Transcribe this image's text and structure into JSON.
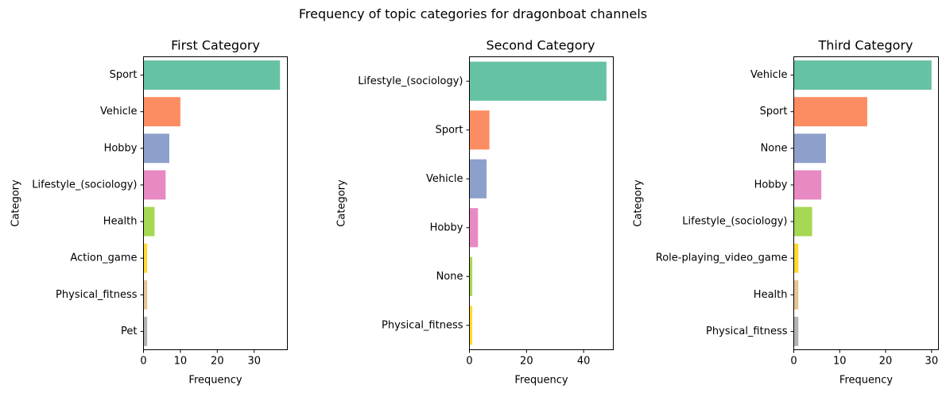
{
  "suptitle": "Frequency of topic categories for dragonboat channels",
  "chart_data": [
    {
      "type": "bar",
      "orientation": "horizontal",
      "title": "First Category",
      "xlabel": "Frequency",
      "ylabel": "Category",
      "categories": [
        "Sport",
        "Vehicle",
        "Hobby",
        "Lifestyle_(sociology)",
        "Health",
        "Action_game",
        "Physical_fitness",
        "Pet"
      ],
      "values": [
        37,
        10,
        7,
        6,
        3,
        1,
        1,
        1
      ],
      "colors": [
        "#66c2a5",
        "#fc8d62",
        "#8da0cb",
        "#e78ac3",
        "#a6d854",
        "#ffd92f",
        "#e5c494",
        "#b3b3b3"
      ],
      "xlim": [
        0,
        39
      ],
      "xticks": [
        0,
        10,
        20,
        30
      ],
      "grid": false
    },
    {
      "type": "bar",
      "orientation": "horizontal",
      "title": "Second Category",
      "xlabel": "Frequency",
      "ylabel": "Category",
      "categories": [
        "Lifestyle_(sociology)",
        "Sport",
        "Vehicle",
        "Hobby",
        "None",
        "Physical_fitness"
      ],
      "values": [
        48,
        7,
        6,
        3,
        1,
        1
      ],
      "colors": [
        "#66c2a5",
        "#fc8d62",
        "#8da0cb",
        "#e78ac3",
        "#a6d854",
        "#ffd92f"
      ],
      "xlim": [
        0,
        50.4
      ],
      "xticks": [
        0,
        20,
        40
      ],
      "grid": false
    },
    {
      "type": "bar",
      "orientation": "horizontal",
      "title": "Third Category",
      "xlabel": "Frequency",
      "ylabel": "Category",
      "categories": [
        "Vehicle",
        "Sport",
        "None",
        "Hobby",
        "Lifestyle_(sociology)",
        "Role-playing_video_game",
        "Health",
        "Physical_fitness"
      ],
      "values": [
        30,
        16,
        7,
        6,
        4,
        1,
        1,
        1
      ],
      "colors": [
        "#66c2a5",
        "#fc8d62",
        "#8da0cb",
        "#e78ac3",
        "#a6d854",
        "#ffd92f",
        "#e5c494",
        "#b3b3b3"
      ],
      "xlim": [
        0,
        31.5
      ],
      "xticks": [
        0,
        10,
        20,
        30
      ],
      "grid": false
    }
  ]
}
